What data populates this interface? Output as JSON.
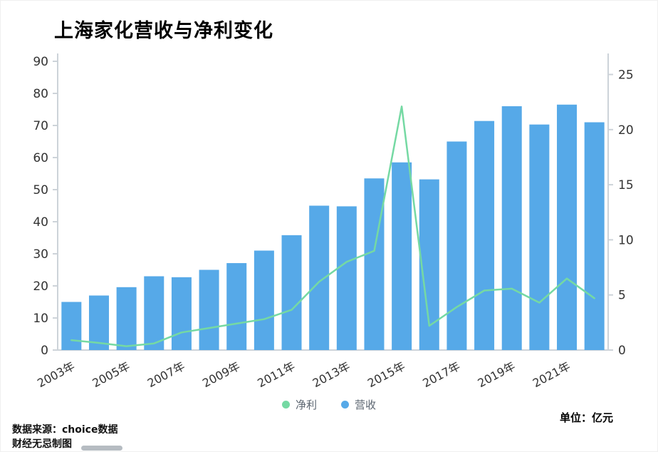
{
  "title": "上海家化营收与净利变化",
  "legend": {
    "net_profit_label": "净利",
    "revenue_label": "营收"
  },
  "unit_label": "单位：亿元",
  "source_line1": "数据来源：choice数据",
  "source_line2": "财经无忌制图",
  "colors": {
    "bar": "#56a9e8",
    "line": "#75d9a3",
    "axis": "#cdd3d9",
    "tick_text": "#333333",
    "x_text": "#333333"
  },
  "chart_data": {
    "type": "bar",
    "title": "上海家化营收与净利变化",
    "categories": [
      "2003年",
      "2004年",
      "2005年",
      "2006年",
      "2007年",
      "2008年",
      "2009年",
      "2010年",
      "2011年",
      "2012年",
      "2013年",
      "2014年",
      "2015年",
      "2016年",
      "2017年",
      "2018年",
      "2019年",
      "2020年",
      "2021年",
      "2022年"
    ],
    "x_tick_labels": [
      "2003年",
      "2005年",
      "2007年",
      "2009年",
      "2011年",
      "2013年",
      "2015年",
      "2017年",
      "2019年",
      "2021年"
    ],
    "series": [
      {
        "name": "营收",
        "type": "bar",
        "axis": "left",
        "values": [
          15.0,
          17.0,
          19.6,
          23.0,
          22.7,
          25.0,
          27.1,
          31.0,
          35.8,
          45.0,
          44.8,
          53.5,
          58.5,
          53.2,
          65.0,
          71.4,
          76.0,
          70.3,
          76.5,
          71.0
        ]
      },
      {
        "name": "净利",
        "type": "line",
        "axis": "right",
        "values": [
          0.9,
          0.65,
          0.35,
          0.6,
          1.6,
          2.0,
          2.4,
          2.8,
          3.65,
          6.2,
          8.0,
          9.0,
          22.1,
          2.2,
          3.9,
          5.4,
          5.57,
          4.3,
          6.49,
          4.7
        ]
      }
    ],
    "left_axis": {
      "min": 0,
      "max": 90,
      "ticks": [
        0,
        10,
        20,
        30,
        40,
        50,
        60,
        70,
        80,
        90
      ]
    },
    "right_axis": {
      "min": 0,
      "max": 25,
      "ticks": [
        0,
        5,
        10,
        15,
        20,
        25
      ]
    },
    "legend_position": "bottom",
    "grid": false,
    "unit": "亿元"
  }
}
